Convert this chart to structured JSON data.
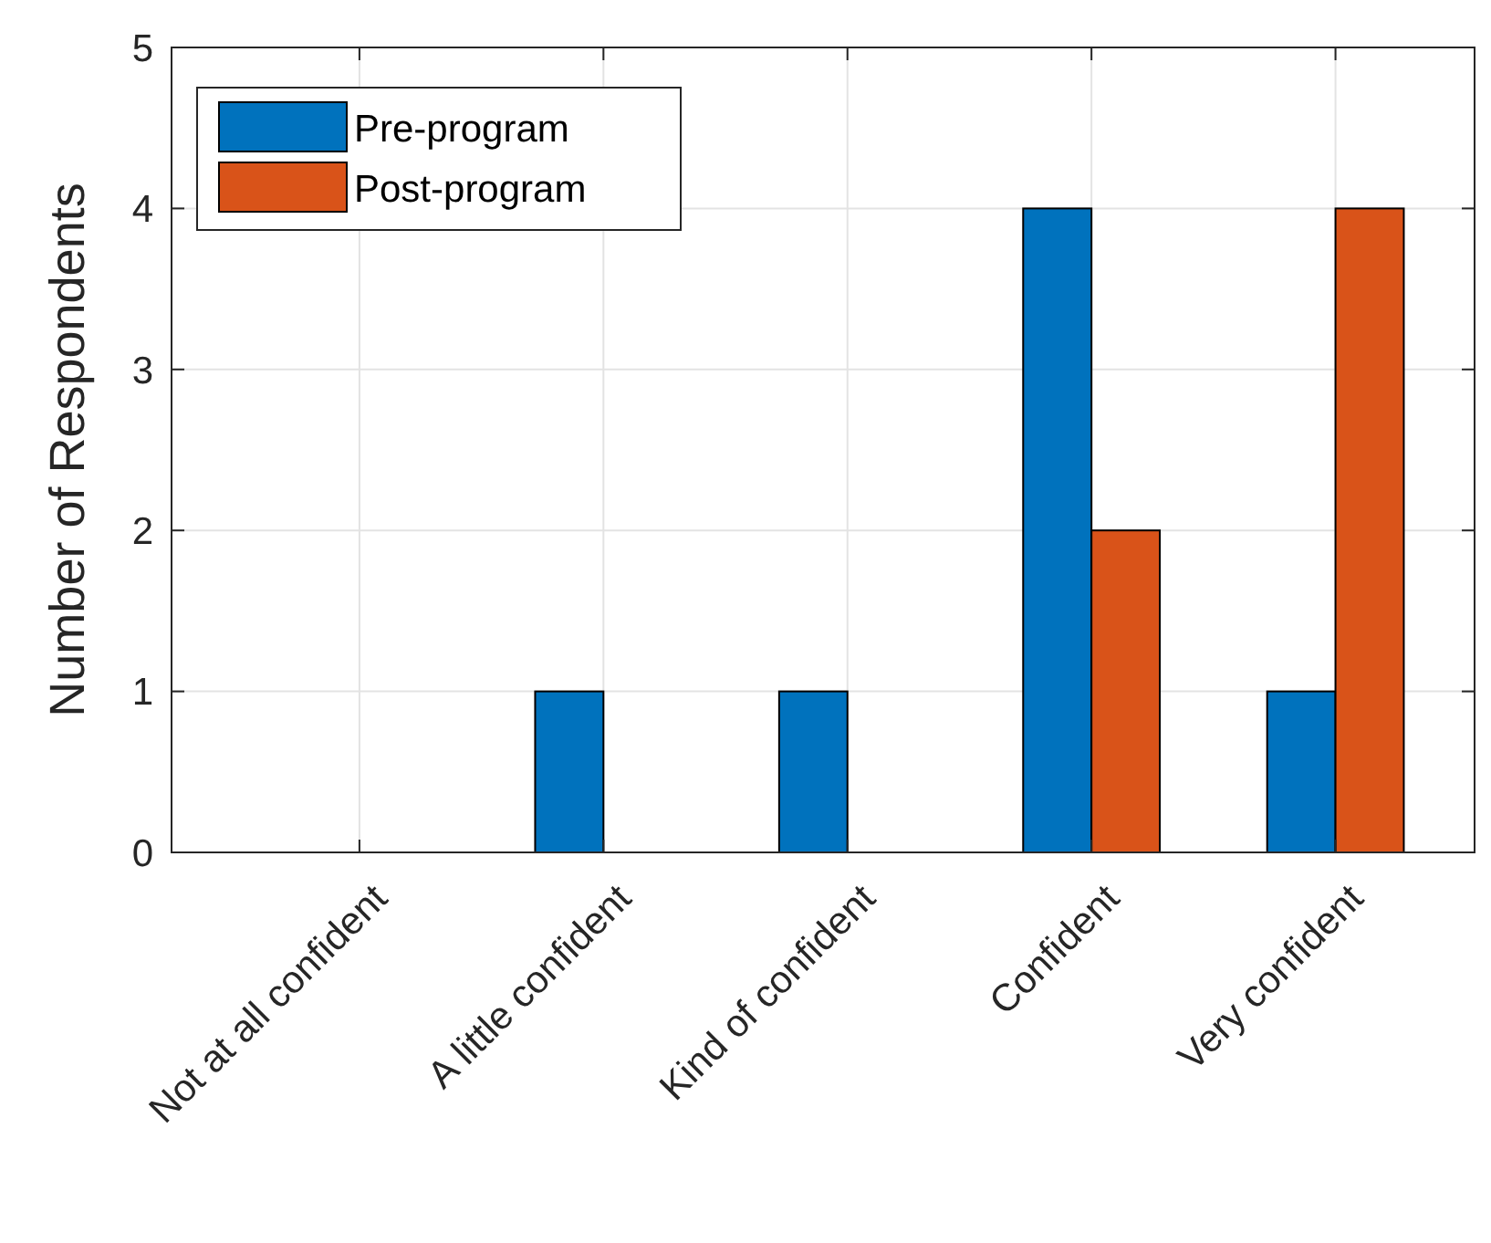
{
  "chart_data": {
    "type": "bar",
    "ylabel": "Number of Respondents",
    "categories": [
      "Not at all confident",
      "A little confident",
      "Kind of confident",
      "Confident",
      "Very confident"
    ],
    "series": [
      {
        "name": "Pre-program",
        "color": "#0072bd",
        "values": [
          0,
          1,
          1,
          4,
          1
        ]
      },
      {
        "name": "Post-program",
        "color": "#d95319",
        "values": [
          0,
          0,
          0,
          2,
          4
        ]
      }
    ],
    "ylim": [
      0,
      5
    ],
    "yticks": [
      0,
      1,
      2,
      3,
      4,
      5
    ],
    "grid": true,
    "legend": "top left"
  }
}
